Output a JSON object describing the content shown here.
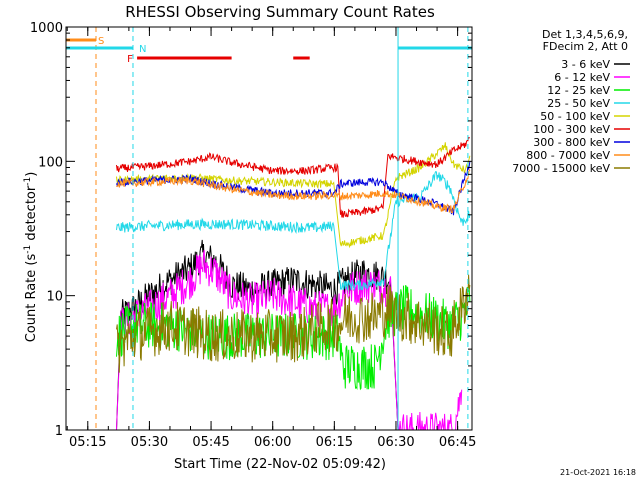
{
  "chart_data": {
    "type": "line",
    "title": "RHESSI Observing Summary Count Rates",
    "xlabel": "Start Time (22-Nov-02 05:09:42)",
    "ylabel": "Count Rate (s",
    "ylabel_sup": "-1",
    "ylabel_mid": " detector",
    "ylabel_sup2": "-1",
    "ylabel_end": ")",
    "y_scale": "log",
    "ylim": [
      1,
      1000
    ],
    "xlim": [
      "05:09:42",
      "06:48:30"
    ],
    "x_ticks": [
      "05:15",
      "05:30",
      "05:45",
      "06:00",
      "06:15",
      "06:30",
      "06:45"
    ],
    "y_ticks": [
      "1",
      "10",
      "100",
      "1000"
    ],
    "grid": false,
    "legend_position": "right",
    "legend_header": [
      "Det 1,3,4,5,6,9,",
      "FDecim 2, Att 0"
    ],
    "footer_date": "21-Oct-2021 16:18",
    "flag_labels": {
      "S": "S",
      "N": "N",
      "F": "F"
    },
    "flags": {
      "S": {
        "color": "#ff8c1a",
        "segments": [
          [
            "05:09:42",
            "05:17:00"
          ]
        ]
      },
      "N": {
        "color": "#22d8e8",
        "segments": [
          [
            "05:09:42",
            "05:26:00"
          ],
          [
            "06:30:30",
            "06:48:30"
          ]
        ]
      },
      "F": {
        "color": "#e60000",
        "segments": [
          [
            "05:27:00",
            "05:50:00"
          ],
          [
            "06:05:00",
            "06:09:00"
          ]
        ]
      }
    },
    "vertical_lines": [
      {
        "time": "05:17:00",
        "color": "#ff8c1a",
        "style": "dashed"
      },
      {
        "time": "05:26:00",
        "color": "#22d8e8",
        "style": "dashed"
      },
      {
        "time": "06:30:30",
        "color": "#22d8e8",
        "style": "solid"
      },
      {
        "time": "06:47:30",
        "color": "#22d8e8",
        "style": "dashed"
      }
    ],
    "series": [
      {
        "name": "3 - 6 keV",
        "color": "#000000",
        "points": [
          [
            "05:22:00",
            1
          ],
          [
            "05:23:00",
            7
          ],
          [
            "05:26:00",
            8
          ],
          [
            "05:30:00",
            10
          ],
          [
            "05:35:00",
            13
          ],
          [
            "05:40:00",
            16
          ],
          [
            "05:43:00",
            20
          ],
          [
            "05:46:00",
            18
          ],
          [
            "05:50:00",
            12
          ],
          [
            "05:55:00",
            11
          ],
          [
            "06:00:00",
            12
          ],
          [
            "06:05:00",
            13
          ],
          [
            "06:10:00",
            12
          ],
          [
            "06:15:00",
            11
          ],
          [
            "06:18:00",
            13
          ],
          [
            "06:22:00",
            15
          ],
          [
            "06:26:00",
            14
          ],
          [
            "06:29:00",
            13
          ],
          [
            "06:30:30",
            1
          ]
        ],
        "noise": 0.12
      },
      {
        "name": "6 - 12 keV",
        "color": "#ff00ff",
        "points": [
          [
            "05:22:00",
            1
          ],
          [
            "05:23:00",
            6
          ],
          [
            "05:26:00",
            7
          ],
          [
            "05:30:00",
            8
          ],
          [
            "05:35:00",
            10
          ],
          [
            "05:40:00",
            13
          ],
          [
            "05:43:00",
            17
          ],
          [
            "05:46:00",
            15
          ],
          [
            "05:50:00",
            10
          ],
          [
            "05:55:00",
            9
          ],
          [
            "06:00:00",
            10
          ],
          [
            "06:05:00",
            9
          ],
          [
            "06:10:00",
            8
          ],
          [
            "06:15:00",
            8
          ],
          [
            "06:18:00",
            11
          ],
          [
            "06:22:00",
            12
          ],
          [
            "06:26:00",
            12
          ],
          [
            "06:29:00",
            11
          ],
          [
            "06:30:30",
            1
          ],
          [
            "06:44:00",
            1
          ],
          [
            "06:46:00",
            2
          ]
        ],
        "noise": 0.14
      },
      {
        "name": "12 - 25 keV",
        "color": "#00ee00",
        "points": [
          [
            "05:22:00",
            5
          ],
          [
            "05:26:00",
            6
          ],
          [
            "05:35:00",
            6
          ],
          [
            "05:45:00",
            5
          ],
          [
            "05:55:00",
            5
          ],
          [
            "06:05:00",
            5
          ],
          [
            "06:13:00",
            5
          ],
          [
            "06:16:00",
            5
          ],
          [
            "06:17:00",
            3
          ],
          [
            "06:25:00",
            3
          ],
          [
            "06:28:00",
            7
          ],
          [
            "06:32:00",
            8
          ],
          [
            "06:38:00",
            7
          ],
          [
            "06:43:00",
            6
          ],
          [
            "06:46:00",
            7
          ],
          [
            "06:48:00",
            9
          ]
        ],
        "noise": 0.18
      },
      {
        "name": "25 - 50 keV",
        "color": "#22d8e8",
        "points": [
          [
            "05:22:00",
            32
          ],
          [
            "05:30:00",
            33
          ],
          [
            "05:40:00",
            34
          ],
          [
            "05:50:00",
            34
          ],
          [
            "06:00:00",
            33
          ],
          [
            "06:10:00",
            32
          ],
          [
            "06:15:00",
            33
          ],
          [
            "06:16:30",
            12
          ],
          [
            "06:22:00",
            12
          ],
          [
            "06:27:00",
            13
          ],
          [
            "06:30:00",
            50
          ],
          [
            "06:36:00",
            55
          ],
          [
            "06:40:00",
            80
          ],
          [
            "06:43:00",
            65
          ],
          [
            "06:46:00",
            35
          ],
          [
            "06:48:00",
            40
          ]
        ],
        "noise": 0.04
      },
      {
        "name": "50 - 100 keV",
        "color": "#d4d400",
        "points": [
          [
            "05:22:00",
            72
          ],
          [
            "05:30:00",
            74
          ],
          [
            "05:40:00",
            76
          ],
          [
            "05:50:00",
            72
          ],
          [
            "06:00:00",
            70
          ],
          [
            "06:10:00",
            68
          ],
          [
            "06:15:00",
            68
          ],
          [
            "06:16:30",
            24
          ],
          [
            "06:22:00",
            26
          ],
          [
            "06:27:00",
            28
          ],
          [
            "06:30:00",
            75
          ],
          [
            "06:36:00",
            90
          ],
          [
            "06:40:00",
            115
          ],
          [
            "06:42:00",
            130
          ],
          [
            "06:44:00",
            95
          ],
          [
            "06:47:00",
            85
          ],
          [
            "06:48:00",
            110
          ]
        ],
        "noise": 0.03
      },
      {
        "name": "100 - 300 keV",
        "color": "#e60000",
        "points": [
          [
            "05:22:00",
            88
          ],
          [
            "05:30:00",
            92
          ],
          [
            "05:40:00",
            100
          ],
          [
            "05:45:00",
            108
          ],
          [
            "05:50:00",
            98
          ],
          [
            "06:00:00",
            85
          ],
          [
            "06:08:00",
            85
          ],
          [
            "06:15:00",
            90
          ],
          [
            "06:16:00",
            90
          ],
          [
            "06:16:30",
            40
          ],
          [
            "06:22:00",
            42
          ],
          [
            "06:27:00",
            45
          ],
          [
            "06:28:00",
            110
          ],
          [
            "06:35:00",
            100
          ],
          [
            "06:40:00",
            95
          ],
          [
            "06:44:00",
            120
          ],
          [
            "06:47:00",
            135
          ],
          [
            "06:48:00",
            150
          ]
        ],
        "noise": 0.03
      },
      {
        "name": "300 - 800 keV",
        "color": "#0000dd",
        "points": [
          [
            "05:22:00",
            70
          ],
          [
            "05:30:00",
            72
          ],
          [
            "05:40:00",
            74
          ],
          [
            "05:50:00",
            64
          ],
          [
            "06:00:00",
            58
          ],
          [
            "06:08:00",
            58
          ],
          [
            "06:15:00",
            58
          ],
          [
            "06:16:30",
            68
          ],
          [
            "06:22:00",
            70
          ],
          [
            "06:27:00",
            70
          ],
          [
            "06:30:00",
            58
          ],
          [
            "06:36:00",
            52
          ],
          [
            "06:40:00",
            48
          ],
          [
            "06:44:00",
            42
          ],
          [
            "06:48:00",
            100
          ]
        ],
        "noise": 0.03
      },
      {
        "name": "800 - 7000 keV",
        "color": "#ff8c1a",
        "points": [
          [
            "05:22:00",
            68
          ],
          [
            "05:30:00",
            70
          ],
          [
            "05:40:00",
            72
          ],
          [
            "05:50:00",
            62
          ],
          [
            "06:00:00",
            56
          ],
          [
            "06:08:00",
            55
          ],
          [
            "06:15:00",
            56
          ],
          [
            "06:16:30",
            55
          ],
          [
            "06:22:00",
            56
          ],
          [
            "06:27:00",
            58
          ],
          [
            "06:30:00",
            56
          ],
          [
            "06:36:00",
            50
          ],
          [
            "06:40:00",
            46
          ],
          [
            "06:44:00",
            44
          ],
          [
            "06:48:00",
            85
          ]
        ],
        "noise": 0.03
      },
      {
        "name": "7000 - 15000 keV",
        "color": "#8a7a00",
        "points": [
          [
            "05:22:00",
            4
          ],
          [
            "05:26:00",
            5
          ],
          [
            "05:35:00",
            6
          ],
          [
            "05:45:00",
            5
          ],
          [
            "05:55:00",
            5
          ],
          [
            "06:05:00",
            5
          ],
          [
            "06:13:00",
            6
          ],
          [
            "06:16:00",
            6
          ],
          [
            "06:18:00",
            7
          ],
          [
            "06:25:00",
            7
          ],
          [
            "06:28:00",
            8
          ],
          [
            "06:32:00",
            7
          ],
          [
            "06:38:00",
            6
          ],
          [
            "06:43:00",
            5
          ],
          [
            "06:46:00",
            8
          ],
          [
            "06:48:00",
            12
          ]
        ],
        "noise": 0.2
      }
    ]
  }
}
